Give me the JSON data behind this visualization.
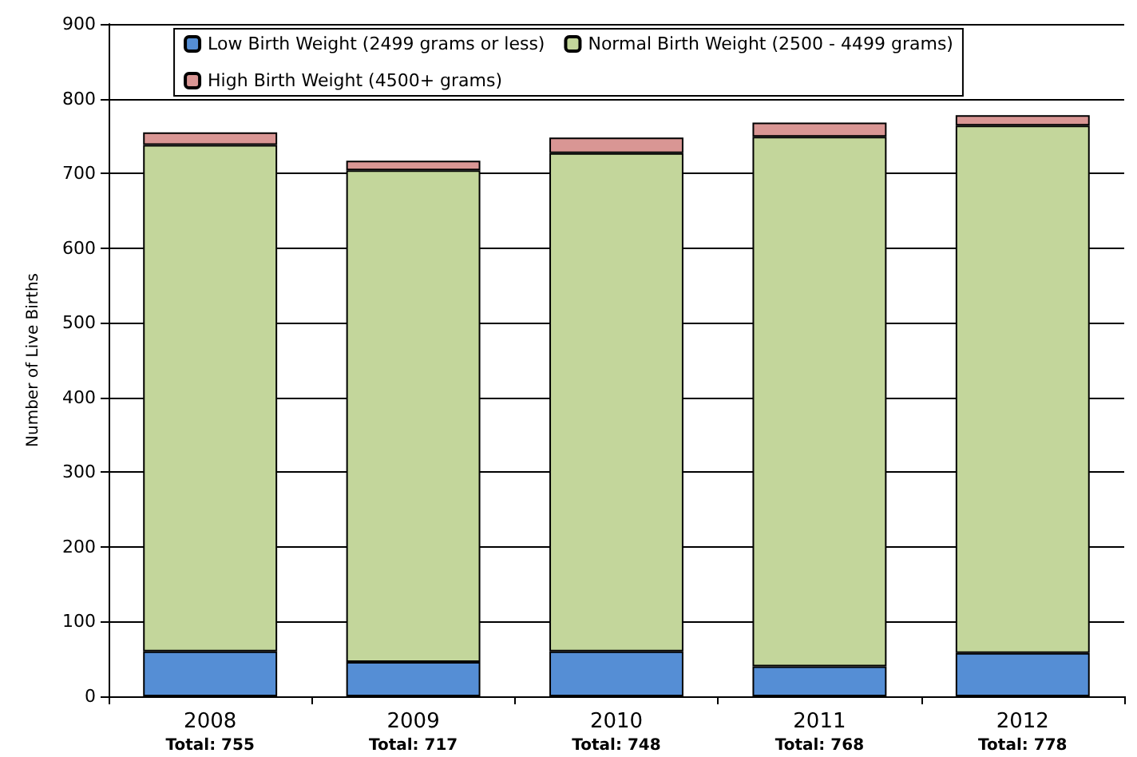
{
  "chart_data": {
    "type": "bar",
    "stacked": true,
    "ylabel": "Number of Live Births",
    "categories": [
      "2008",
      "2009",
      "2010",
      "2011",
      "2012"
    ],
    "series": [
      {
        "name": "Low Birth Weight (2499 grams or less)",
        "color": "#558ed5",
        "values": [
          60,
          46,
          60,
          40,
          58
        ]
      },
      {
        "name": "Normal Birth Weight (2500 - 4499 grams)",
        "color": "#c3d69b",
        "values": [
          678,
          658,
          667,
          709,
          706
        ]
      },
      {
        "name": "High Birth Weight (4500+ grams)",
        "color": "#d99694",
        "values": [
          17,
          13,
          21,
          19,
          14
        ]
      }
    ],
    "totals": [
      "Total: 755",
      "Total: 717",
      "Total: 748",
      "Total: 768",
      "Total: 778"
    ],
    "ylim": [
      0,
      900
    ],
    "yticks": [
      0,
      100,
      200,
      300,
      400,
      500,
      600,
      700,
      800,
      900
    ],
    "grid": "y",
    "legend": "top"
  }
}
